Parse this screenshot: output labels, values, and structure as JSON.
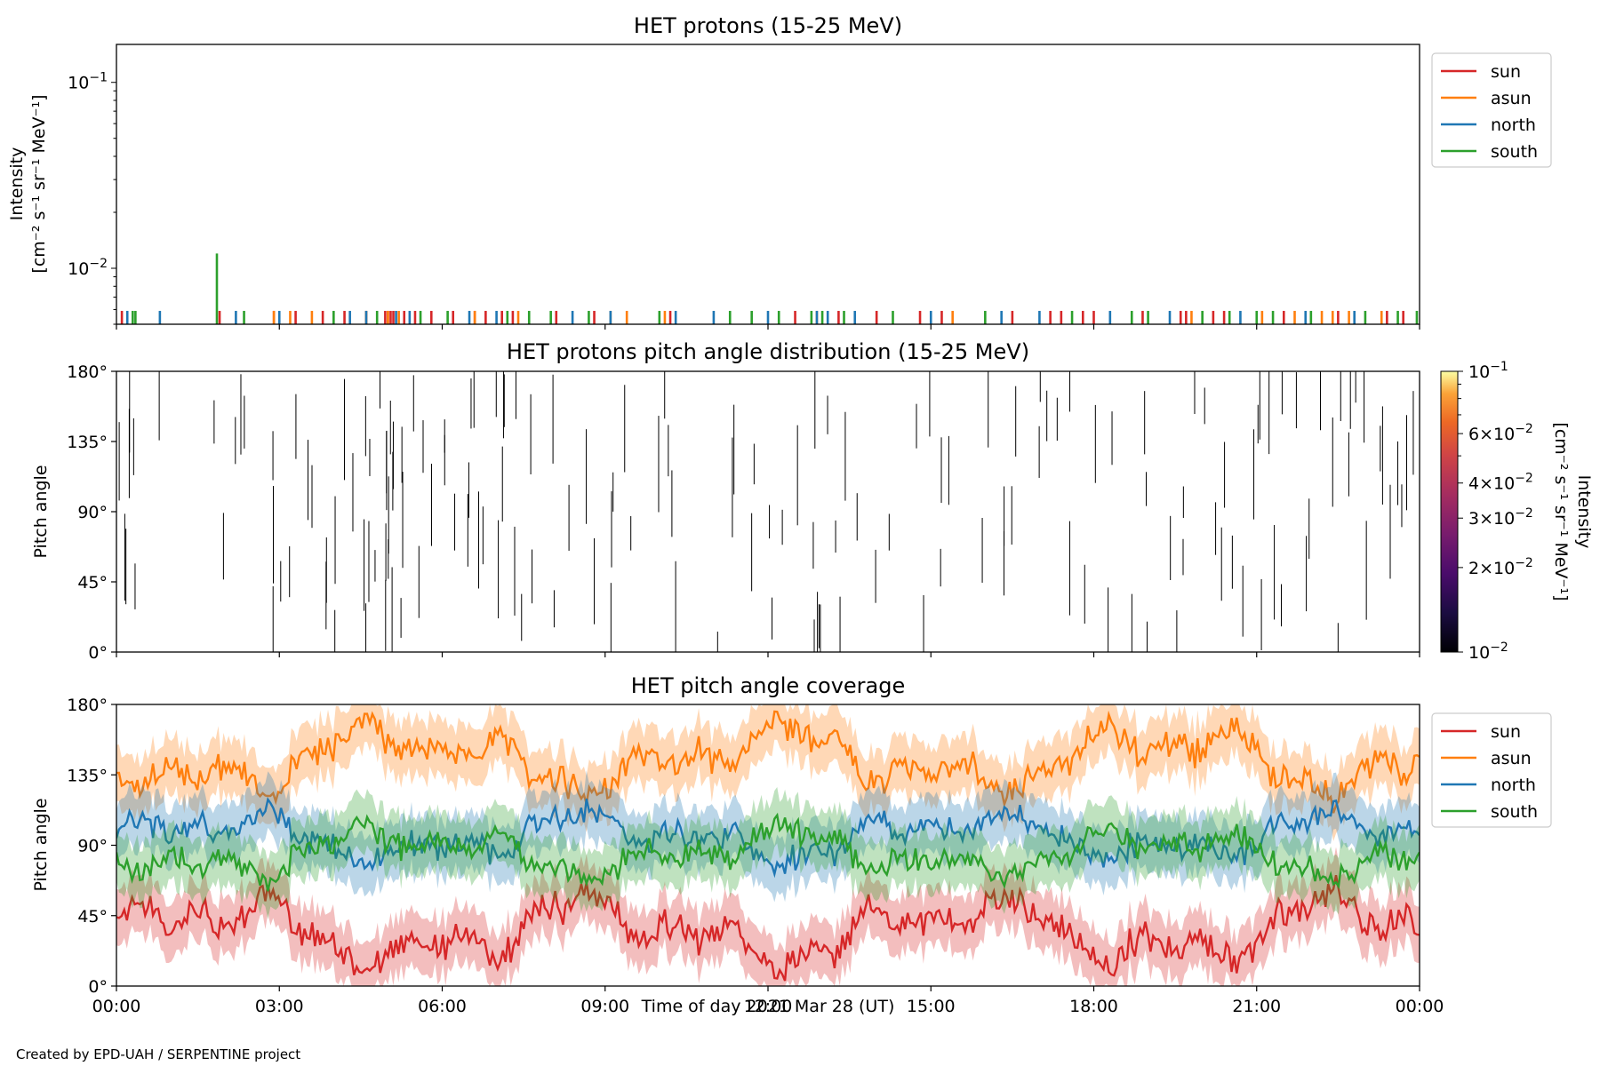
{
  "footer": {
    "credit": "Created by EPD-UAH / SERPENTINE project"
  },
  "chart_data": [
    {
      "type": "line",
      "title": "HET protons (15-25 MeV)",
      "ylabel_line1": "Intensity",
      "ylabel_line2": "[cm⁻² s⁻¹ sr⁻¹ MeV⁻¹]",
      "yscale": "log",
      "ylim": [
        0.005,
        0.16
      ],
      "yticks": [
        {
          "value": 0.1,
          "base": "10",
          "exp": "−1"
        },
        {
          "value": 0.01,
          "base": "10",
          "exp": "−2"
        }
      ],
      "legend_position": "outside right, top",
      "series": [
        {
          "name": "sun",
          "color": "#d62728",
          "spike_hours": [
            0.1,
            1.9,
            2.9,
            3.3,
            3.8,
            4.2,
            4.6,
            4.95,
            5.0,
            5.05,
            5.1,
            5.3,
            5.5,
            5.8,
            6.2,
            6.6,
            6.8,
            7.1,
            7.3,
            8.1,
            8.8,
            10.2,
            12.5,
            13.3,
            14.0,
            14.8,
            15.2,
            16.5,
            17.2,
            17.4,
            17.8,
            18.0,
            18.9,
            19.6,
            19.7,
            20.2,
            20.4,
            21.5,
            22.5,
            23.4,
            23.7
          ]
        },
        {
          "name": "asun",
          "color": "#ff7f0e",
          "spike_hours": [
            2.9,
            3.2,
            3.6,
            4.6,
            5.0,
            5.2,
            6.6,
            7.4,
            9.1,
            9.4,
            10.1,
            12.9,
            15.4,
            19.8,
            21.1,
            21.7,
            22.2,
            22.4,
            22.7,
            23.3
          ]
        },
        {
          "name": "north",
          "color": "#1f77b4",
          "spike_hours": [
            0.2,
            0.8,
            2.2,
            3.0,
            4.3,
            4.6,
            5.15,
            5.4,
            6.5,
            7.0,
            8.4,
            9.1,
            10.3,
            11.0,
            12.0,
            12.9,
            13.1,
            13.6,
            15.0,
            16.3,
            17.0,
            18.3,
            19.4,
            20.7,
            21.9,
            22.8
          ]
        },
        {
          "name": "south",
          "color": "#2ca02c",
          "spike_hours": [
            0.3,
            0.35,
            1.85,
            2.35,
            4.0,
            4.8,
            5.6,
            6.1,
            7.2,
            7.6,
            8.0,
            8.7,
            10.0,
            11.3,
            11.7,
            12.2,
            12.8,
            13.0,
            13.4,
            14.3,
            16.0,
            17.6,
            18.7,
            19.0,
            20.0,
            20.5,
            21.0,
            21.3,
            22.0,
            23.0,
            23.6,
            23.95
          ],
          "peak": {
            "hour": 1.85,
            "value": 0.012
          }
        }
      ],
      "baseline_value": 0.0059
    },
    {
      "type": "heatmap",
      "title": "HET protons pitch angle distribution (15-25 MeV)",
      "ylabel": "Pitch angle",
      "ylim": [
        0,
        180
      ],
      "yticks": [
        "0°",
        "45°",
        "90°",
        "135°",
        "180°"
      ],
      "colorbar": {
        "scale": "log",
        "range": [
          0.01,
          0.1
        ],
        "label_line1": "Intensity",
        "label_line2": "[cm⁻² s⁻¹ sr⁻¹ MeV⁻¹]",
        "ticks": [
          {
            "value": 0.1,
            "base": "10",
            "exp": "−1"
          },
          {
            "value": 0.06,
            "coef": "6×",
            "base": "10",
            "exp": "−2"
          },
          {
            "value": 0.04,
            "coef": "4×",
            "base": "10",
            "exp": "−2"
          },
          {
            "value": 0.03,
            "coef": "3×",
            "base": "10",
            "exp": "−2"
          },
          {
            "value": 0.02,
            "coef": "2×",
            "base": "10",
            "exp": "−2"
          },
          {
            "value": 0.01,
            "base": "10",
            "exp": "−2"
          }
        ]
      },
      "mark_color": "#000000"
    },
    {
      "type": "line",
      "title": "HET pitch angle coverage",
      "ylabel": "Pitch angle",
      "ylim": [
        0,
        180
      ],
      "yticks": [
        "0°",
        "45°",
        "90°",
        "135°",
        "180°"
      ],
      "legend_position": "outside right, top",
      "series": [
        {
          "name": "sun",
          "color": "#d62728",
          "approx_mean_deg": 35
        },
        {
          "name": "asun",
          "color": "#ff7f0e",
          "approx_mean_deg": 145
        },
        {
          "name": "north",
          "color": "#1f77b4",
          "approx_mean_deg": 95
        },
        {
          "name": "south",
          "color": "#2ca02c",
          "approx_mean_deg": 85
        }
      ]
    }
  ],
  "x_axis": {
    "label": "Time of day 2021 Mar 28 (UT)",
    "range_hours": [
      0,
      24
    ],
    "ticks": [
      "00:00",
      "03:00",
      "06:00",
      "09:00",
      "12:00",
      "15:00",
      "18:00",
      "21:00",
      "00:00"
    ]
  }
}
